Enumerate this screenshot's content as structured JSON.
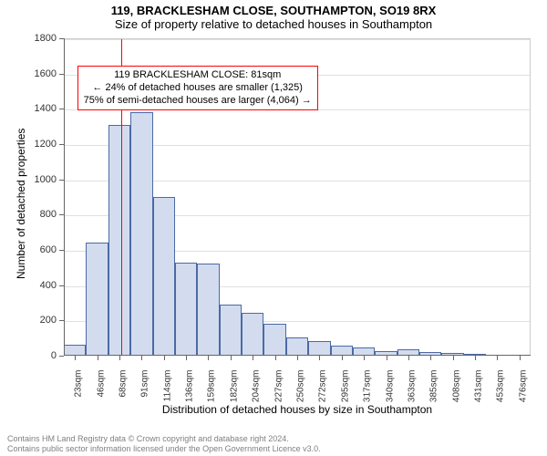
{
  "title_line1": "119, BRACKLESHAM CLOSE, SOUTHAMPTON, SO19 8RX",
  "title_line2": "Size of property relative to detached houses in Southampton",
  "y_axis_label": "Number of detached properties",
  "x_axis_label": "Distribution of detached houses by size in Southampton",
  "chart": {
    "type": "histogram",
    "ylim": [
      0,
      1800
    ],
    "ytick_step": 200,
    "yticks": [
      0,
      200,
      400,
      600,
      800,
      1000,
      1200,
      1400,
      1600,
      1800
    ],
    "xticks": [
      "23sqm",
      "46sqm",
      "68sqm",
      "91sqm",
      "114sqm",
      "136sqm",
      "159sqm",
      "182sqm",
      "204sqm",
      "227sqm",
      "250sqm",
      "272sqm",
      "295sqm",
      "317sqm",
      "340sqm",
      "363sqm",
      "385sqm",
      "408sqm",
      "431sqm",
      "453sqm",
      "476sqm"
    ],
    "bars": [
      60,
      640,
      1310,
      1380,
      900,
      530,
      520,
      290,
      245,
      180,
      105,
      85,
      58,
      45,
      28,
      35,
      22,
      18,
      10,
      5,
      0
    ],
    "bar_fill": "#d3dcef",
    "bar_stroke": "#4a6aa5",
    "bar_stroke_width": 1,
    "grid_color": "#e0e0e0",
    "axis_color": "#666666",
    "background_color": "#ffffff",
    "marker_line_x_index": 2.6,
    "marker_line_color": "#ff0000",
    "annotation_border_color": "#ff0000",
    "annotation_bg": "#ffffff",
    "bar_gap_ratio": 0.0,
    "tick_fontsize": 11,
    "xtick_fontsize": 10,
    "label_fontsize": 12,
    "title_fontsize": 13
  },
  "annotation": {
    "line1": "119 BRACKLESHAM CLOSE: 81sqm",
    "line2": "← 24% of detached houses are smaller (1,325)",
    "line3": "75% of semi-detached houses are larger (4,064) →"
  },
  "footer_line1": "Contains HM Land Registry data © Crown copyright and database right 2024.",
  "footer_line2": "Contains public sector information licensed under the Open Government Licence v3.0."
}
